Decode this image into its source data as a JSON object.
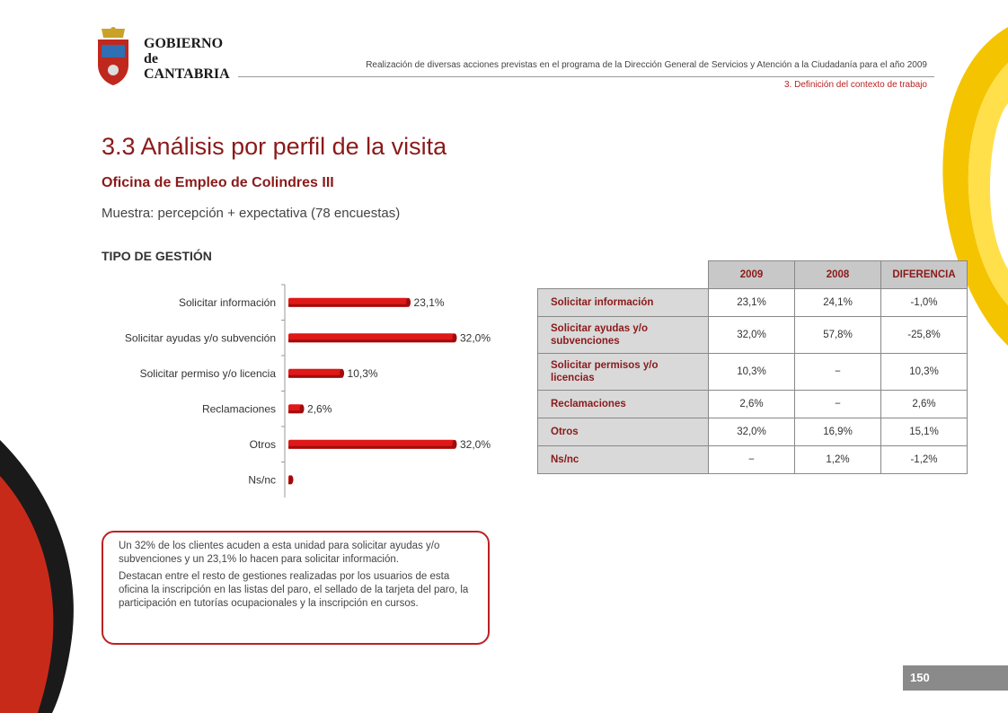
{
  "header": {
    "org_name_line1": "GOBIERNO",
    "org_name_line2": "de",
    "org_name_line3": "CANTABRIA",
    "report_title": "Realización de diversas acciones previstas en el programa de la Dirección General de Servicios y Atención a la Ciudadanía para el año 2009",
    "section": "3. Definición del contexto de trabajo"
  },
  "page": {
    "title": "3.3 Análisis por perfil de la visita",
    "subtitle": "Oficina de Empleo de Colindres III",
    "sample": "Muestra: percepción + expectativa (78 encuestas)",
    "number": "150"
  },
  "colors": {
    "accent": "#8b1a1a",
    "bar": "#e01818",
    "bar_dark": "#a00c0c",
    "table_header": "#c8c8c8"
  },
  "chart_data": {
    "type": "bar",
    "orientation": "horizontal",
    "title": "TIPO DE GESTIÓN",
    "categories": [
      "Solicitar información",
      "Solicitar ayudas y/o subvención",
      "Solicitar permiso y/o licencia",
      "Reclamaciones",
      "Otros",
      "Ns/nc"
    ],
    "values": [
      23.1,
      32.0,
      10.3,
      2.6,
      32.0,
      0
    ],
    "value_labels": [
      "23,1%",
      "32,0%",
      "10,3%",
      "2,6%",
      "32,0%",
      ""
    ],
    "xlim": [
      0,
      32
    ],
    "unit": "%"
  },
  "table": {
    "headers": [
      "2009",
      "2008",
      "DIFERENCIA"
    ],
    "rows": [
      {
        "label": "Solicitar información",
        "v2009": "23,1%",
        "v2008": "24,1%",
        "diff": "-1,0%"
      },
      {
        "label": "Solicitar ayudas y/o subvenciones",
        "v2009": "32,0%",
        "v2008": "57,8%",
        "diff": "-25,8%"
      },
      {
        "label": "Solicitar permisos y/o licencias",
        "v2009": "10,3%",
        "v2008": "−",
        "diff": "10,3%"
      },
      {
        "label": "Reclamaciones",
        "v2009": "2,6%",
        "v2008": "−",
        "diff": "2,6%"
      },
      {
        "label": "Otros",
        "v2009": "32,0%",
        "v2008": "16,9%",
        "diff": "15,1%"
      },
      {
        "label": "Ns/nc",
        "v2009": "−",
        "v2008": "1,2%",
        "diff": "-1,2%"
      }
    ]
  },
  "note": {
    "paragraph1": "Un 32% de los clientes acuden a esta unidad para solicitar ayudas y/o subvenciones y un 23,1% lo hacen para solicitar información.",
    "paragraph2": "Destacan entre el resto de gestiones realizadas por los usuarios de esta oficina la inscripción en las listas del paro, el sellado de la tarjeta del paro, la participación en tutorías ocupacionales y la inscripción en cursos."
  }
}
